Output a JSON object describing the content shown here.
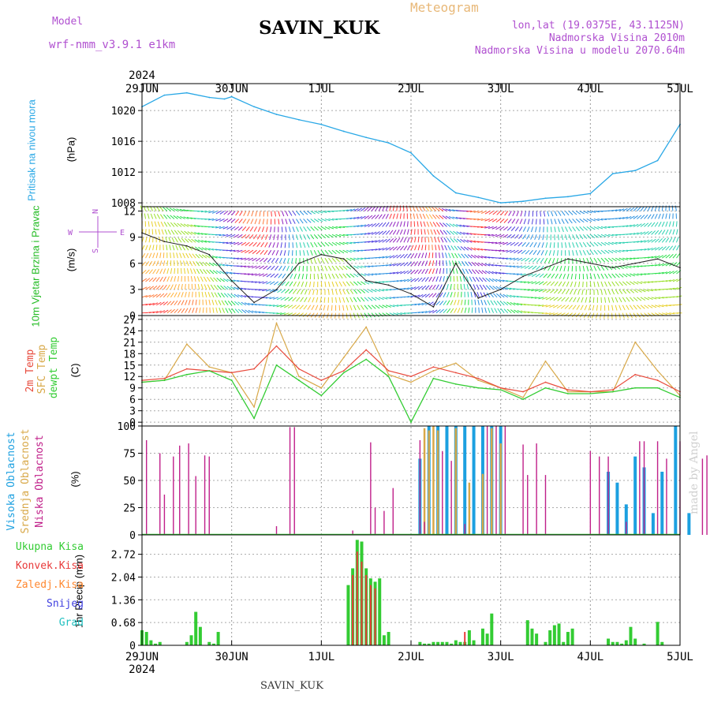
{
  "header": {
    "model_label": "Model",
    "model_name": "wrf-nmm_v3.9.1 e1km",
    "station": "SAVIN_KUK",
    "product": "Meteogram",
    "lonlat": "lon,lat (19.0375E, 43.1125N)",
    "elevation": "Nadmorska Visina 2010m",
    "model_elevation": "Nadmorska Visina u modelu 2070.64m",
    "year": "2024",
    "footer_station": "SAVIN_KUK",
    "credit": "made by Angel"
  },
  "colors": {
    "pressure": "#2aa8e6",
    "temp2m": "#e84a3c",
    "sfc_temp": "#d8a848",
    "dewpoint": "#33cc33",
    "high_cloud": "#1ca0e0",
    "mid_cloud": "#d8a848",
    "low_cloud": "#c0208a",
    "total_precip": "#33cc33",
    "conv_precip": "#e83a3a",
    "frozen_precip": "#ff8830",
    "snow": "#4040e0",
    "graupel": "#20c0c0",
    "model": "#b050d0",
    "title_orange": "#e8b878"
  },
  "chart_data": [
    {
      "type": "line",
      "panel": "pressure",
      "ylabel_colored": "Pritisak na nivou mora",
      "unit": "(hPa)",
      "x_dates": [
        "29JUN",
        "30JUN",
        "1JUL",
        "2JUL",
        "3JUL",
        "4JUL",
        "5JUL"
      ],
      "yticks": [
        1008,
        1012,
        1016,
        1020
      ],
      "ylim": [
        1007.5,
        1023.5
      ],
      "series": [
        {
          "name": "pressure",
          "x_days": [
            0,
            0.25,
            0.5,
            0.75,
            0.92,
            1,
            1.25,
            1.5,
            1.75,
            2,
            2.25,
            2.5,
            2.75,
            3,
            3.25,
            3.5,
            3.75,
            4,
            4.25,
            4.5,
            4.75,
            5,
            5.25,
            5.5,
            5.75,
            6
          ],
          "values": [
            1020.5,
            1022.0,
            1022.3,
            1021.7,
            1021.5,
            1021.8,
            1020.5,
            1019.5,
            1018.8,
            1018.2,
            1017.3,
            1016.5,
            1015.8,
            1014.5,
            1011.5,
            1009.3,
            1008.7,
            1008.0,
            1008.2,
            1008.6,
            1008.8,
            1009.2,
            1011.8,
            1012.2,
            1013.5,
            1018.2
          ]
        }
      ]
    },
    {
      "type": "line",
      "panel": "wind",
      "ylabel_colored": "10m Vjetar Brzina i Pravac",
      "unit": "(m/s)",
      "compass": [
        "N",
        "S",
        "W",
        "E"
      ],
      "yticks": [
        0,
        3,
        6,
        9,
        12
      ],
      "ylim": [
        0,
        12.5
      ],
      "series": [
        {
          "name": "wind_speed",
          "x_days": [
            0,
            0.25,
            0.5,
            0.75,
            1,
            1.25,
            1.5,
            1.75,
            2,
            2.25,
            2.5,
            2.75,
            3,
            3.25,
            3.5,
            3.75,
            4,
            4.25,
            4.5,
            4.75,
            5,
            5.25,
            5.5,
            5.75,
            6
          ],
          "values": [
            9.5,
            8.5,
            8.0,
            7.0,
            4.0,
            1.5,
            3.0,
            6.0,
            7.0,
            6.5,
            4.0,
            3.5,
            2.5,
            1.0,
            6.0,
            2.0,
            3.0,
            4.5,
            5.5,
            6.5,
            6.0,
            5.5,
            6.0,
            6.5,
            5.5
          ]
        }
      ]
    },
    {
      "type": "line",
      "panel": "temperature",
      "ylabel_colored": [
        "2m Temp",
        "SFC Temp",
        "dewpt Temp"
      ],
      "unit": "(C)",
      "yticks": [
        0,
        3,
        6,
        9,
        12,
        15,
        18,
        21,
        24,
        27
      ],
      "ylim": [
        -1,
        28
      ],
      "series": [
        {
          "name": "2m Temp",
          "x_days": [
            0,
            0.25,
            0.5,
            0.75,
            1,
            1.25,
            1.5,
            1.75,
            2,
            2.25,
            2.5,
            2.75,
            3,
            3.25,
            3.5,
            3.75,
            4,
            4.25,
            4.5,
            4.75,
            5,
            5.25,
            5.5,
            5.75,
            6
          ],
          "values": [
            11.0,
            11.5,
            14.0,
            13.5,
            13.0,
            14.0,
            20.0,
            14.0,
            11.0,
            13.5,
            19.0,
            13.5,
            12.0,
            14.5,
            13.0,
            11.5,
            9.0,
            8.0,
            10.5,
            8.5,
            8.0,
            8.5,
            12.5,
            11.0,
            8.0
          ]
        },
        {
          "name": "SFC Temp",
          "x_days": [
            0,
            0.25,
            0.5,
            0.75,
            1,
            1.25,
            1.5,
            1.75,
            2,
            2.25,
            2.5,
            2.75,
            3,
            3.25,
            3.5,
            3.75,
            4,
            4.25,
            4.5,
            4.75,
            5,
            5.25,
            5.5,
            5.75,
            6
          ],
          "values": [
            10.5,
            11.0,
            20.5,
            14.5,
            13.0,
            4.0,
            26.0,
            12.0,
            9.0,
            17.0,
            25.0,
            12.5,
            10.5,
            13.5,
            15.5,
            11.0,
            9.0,
            6.5,
            16.0,
            8.0,
            8.0,
            8.0,
            21.0,
            13.5,
            7.0
          ]
        },
        {
          "name": "dewpt Temp",
          "x_days": [
            0,
            0.25,
            0.5,
            0.75,
            1,
            1.25,
            1.5,
            1.75,
            2,
            2.25,
            2.5,
            2.75,
            3,
            3.25,
            3.5,
            3.75,
            4,
            4.25,
            4.5,
            4.75,
            5,
            5.25,
            5.5,
            5.75,
            6
          ],
          "values": [
            10.5,
            11.0,
            12.5,
            13.5,
            11.0,
            1.0,
            15.0,
            11.0,
            7.0,
            13.0,
            16.5,
            12.0,
            0.0,
            11.5,
            10.0,
            9.0,
            8.5,
            6.0,
            9.0,
            7.5,
            7.5,
            8.0,
            9.0,
            9.0,
            6.5
          ]
        }
      ]
    },
    {
      "type": "bar",
      "panel": "cloud",
      "ylabel_colored": [
        "Visoka Oblacnost",
        "Srednja Oblacnost",
        "Niska Oblacnost"
      ],
      "unit": "(%)",
      "yticks": [
        0,
        25,
        50,
        75,
        100
      ],
      "ylim": [
        0,
        100
      ],
      "series": [
        {
          "name": "Niska Oblacnost",
          "x_days": [
            0.05,
            0.2,
            0.25,
            0.35,
            0.42,
            0.52,
            0.6,
            0.7,
            0.75,
            1.5,
            1.65,
            1.7,
            2.35,
            2.55,
            2.6,
            2.7,
            2.8,
            3.1,
            3.15,
            3.35,
            3.45,
            3.6,
            3.85,
            3.95,
            4.05,
            4.25,
            4.3,
            4.4,
            4.5,
            5.0,
            5.1,
            5.2,
            5.4,
            5.55,
            5.6,
            5.75,
            5.85,
            6.0,
            6.25,
            6.3
          ],
          "values": [
            87,
            75,
            37,
            72,
            82,
            84,
            54,
            73,
            72,
            8,
            99,
            99,
            4,
            85,
            25,
            22,
            43,
            87,
            12,
            77,
            68,
            10,
            100,
            100,
            100,
            83,
            55,
            84,
            55,
            77,
            72,
            72,
            12,
            86,
            86,
            86,
            70,
            86,
            70,
            73
          ]
        },
        {
          "name": "Srednja Oblacnost",
          "x_days": [
            3.15,
            3.2,
            3.25,
            3.3,
            3.5,
            3.65,
            3.8,
            3.9,
            4.0
          ],
          "values": [
            98,
            96,
            100,
            96,
            98,
            48,
            56,
            98,
            84
          ]
        },
        {
          "name": "Visoka Oblacnost",
          "x_days": [
            3.1,
            3.2,
            3.3,
            3.4,
            3.5,
            3.6,
            3.7,
            3.8,
            3.9,
            4.0,
            5.2,
            5.3,
            5.4,
            5.5,
            5.6,
            5.7,
            5.8,
            5.95,
            6.1
          ],
          "values": [
            70,
            100,
            100,
            100,
            100,
            100,
            100,
            100,
            100,
            100,
            58,
            48,
            28,
            72,
            62,
            20,
            58,
            100,
            20
          ]
        }
      ]
    },
    {
      "type": "bar",
      "panel": "precipitation",
      "ylabel_colored": [
        "Ukupna Kisa",
        "Konvek.Kisa",
        "Zaledj.Kisa",
        "Snijeg",
        "Grad"
      ],
      "unit": "1hr Precip (mm)",
      "yticks": [
        0,
        0.68,
        1.36,
        2.04,
        2.72
      ],
      "ylim": [
        0,
        3.3
      ],
      "series": [
        {
          "name": "Ukupna Kisa",
          "x_days": [
            0.0,
            0.05,
            0.1,
            0.15,
            0.2,
            0.5,
            0.55,
            0.6,
            0.65,
            0.75,
            0.8,
            0.85,
            2.3,
            2.35,
            2.4,
            2.45,
            2.5,
            2.55,
            2.6,
            2.65,
            2.7,
            2.75,
            3.1,
            3.15,
            3.2,
            3.25,
            3.3,
            3.35,
            3.4,
            3.45,
            3.5,
            3.55,
            3.6,
            3.65,
            3.7,
            3.8,
            3.85,
            3.9,
            4.3,
            4.35,
            4.4,
            4.5,
            4.55,
            4.6,
            4.65,
            4.7,
            4.75,
            4.8,
            5.2,
            5.25,
            5.3,
            5.35,
            5.4,
            5.45,
            5.5,
            5.6,
            5.75,
            5.8
          ],
          "values": [
            0.45,
            0.4,
            0.15,
            0.05,
            0.1,
            0.1,
            0.3,
            1.0,
            0.55,
            0.1,
            0.05,
            0.4,
            1.8,
            2.3,
            3.15,
            3.1,
            2.3,
            2.0,
            1.9,
            2.0,
            0.3,
            0.4,
            0.1,
            0.05,
            0.05,
            0.1,
            0.1,
            0.1,
            0.1,
            0.05,
            0.15,
            0.1,
            0.1,
            0.45,
            0.15,
            0.5,
            0.35,
            0.95,
            0.75,
            0.5,
            0.35,
            0.1,
            0.45,
            0.6,
            0.65,
            0.1,
            0.4,
            0.5,
            0.2,
            0.1,
            0.1,
            0.05,
            0.15,
            0.55,
            0.2,
            0.05,
            0.7,
            0.1
          ]
        },
        {
          "name": "Konvek.Kisa",
          "x_days": [
            2.35,
            2.4,
            2.45,
            2.5,
            2.55,
            2.6,
            3.6
          ],
          "values": [
            2.1,
            2.8,
            2.5,
            2.1,
            1.8,
            1.7,
            0.4
          ]
        }
      ]
    }
  ]
}
